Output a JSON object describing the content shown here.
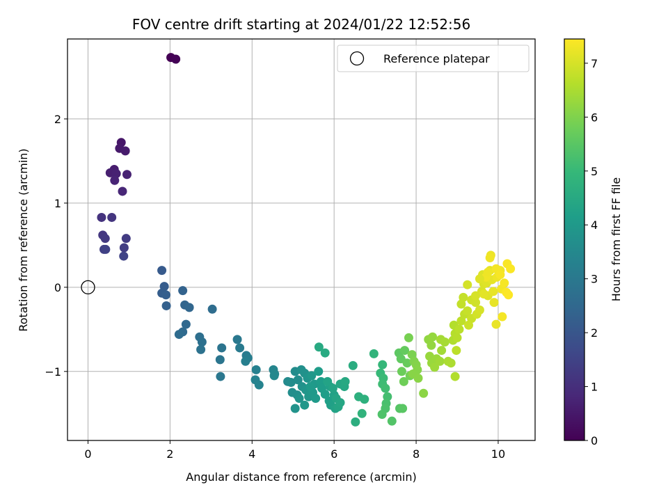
{
  "chart_data": {
    "type": "scatter",
    "title": "FOV centre drift starting at 2024/01/22 12:52:56",
    "xlabel": "Angular distance from reference (arcmin)",
    "ylabel": "Rotation from reference (arcmin)",
    "xlim": [
      -0.5,
      10.9
    ],
    "ylim": [
      -1.82,
      2.95
    ],
    "xticks": [
      0,
      2,
      4,
      6,
      8,
      10
    ],
    "yticks": [
      -1,
      0,
      1,
      2
    ],
    "grid": true,
    "legend": {
      "position": "top-right",
      "label": "Reference platepar"
    },
    "reference_point": {
      "x": 0,
      "y": 0
    },
    "colorbar": {
      "label": "Hours from first FF file",
      "min": 0,
      "max": 7.45,
      "ticks": [
        0,
        1,
        2,
        3,
        4,
        5,
        6,
        7
      ],
      "colormap": "viridis"
    },
    "points": [
      [
        2.02,
        2.73,
        0.0
      ],
      [
        2.14,
        2.71,
        0.05
      ],
      [
        0.81,
        1.72,
        0.45
      ],
      [
        0.77,
        1.65,
        0.5
      ],
      [
        0.91,
        1.62,
        0.55
      ],
      [
        0.64,
        1.4,
        0.6
      ],
      [
        0.54,
        1.36,
        0.65
      ],
      [
        0.69,
        1.35,
        0.7
      ],
      [
        0.95,
        1.34,
        0.72
      ],
      [
        0.65,
        1.27,
        0.75
      ],
      [
        0.84,
        1.14,
        0.8
      ],
      [
        0.33,
        0.83,
        1.1
      ],
      [
        0.58,
        0.83,
        1.15
      ],
      [
        0.36,
        0.62,
        1.2
      ],
      [
        0.42,
        0.58,
        1.25
      ],
      [
        0.93,
        0.58,
        1.3
      ],
      [
        0.88,
        0.47,
        1.35
      ],
      [
        0.39,
        0.45,
        1.4
      ],
      [
        0.43,
        0.45,
        1.45
      ],
      [
        0.87,
        0.37,
        1.5
      ],
      [
        1.8,
        0.2,
        2.1
      ],
      [
        1.86,
        0.01,
        2.15
      ],
      [
        1.8,
        -0.07,
        2.2
      ],
      [
        1.9,
        -0.09,
        2.25
      ],
      [
        1.91,
        -0.22,
        2.3
      ],
      [
        2.31,
        -0.04,
        2.35
      ],
      [
        2.36,
        -0.21,
        2.4
      ],
      [
        2.47,
        -0.24,
        2.45
      ],
      [
        2.39,
        -0.44,
        2.5
      ],
      [
        2.31,
        -0.53,
        2.55
      ],
      [
        2.22,
        -0.56,
        2.6
      ],
      [
        3.03,
        -0.26,
        2.65
      ],
      [
        2.72,
        -0.59,
        2.7
      ],
      [
        2.78,
        -0.65,
        2.75
      ],
      [
        2.75,
        -0.74,
        2.8
      ],
      [
        3.26,
        -0.72,
        2.85
      ],
      [
        3.22,
        -0.86,
        2.9
      ],
      [
        3.23,
        -1.06,
        2.95
      ],
      [
        3.64,
        -0.62,
        3.0
      ],
      [
        3.7,
        -0.72,
        3.05
      ],
      [
        3.86,
        -0.81,
        3.1
      ],
      [
        3.9,
        -0.84,
        3.15
      ],
      [
        3.84,
        -0.88,
        3.2
      ],
      [
        4.1,
        -0.98,
        3.25
      ],
      [
        4.08,
        -1.1,
        3.3
      ],
      [
        4.17,
        -1.16,
        3.35
      ],
      [
        4.52,
        -0.98,
        3.4
      ],
      [
        4.55,
        -1.03,
        3.45
      ],
      [
        4.54,
        -1.05,
        3.5
      ],
      [
        4.87,
        -1.12,
        3.55
      ],
      [
        4.95,
        -1.13,
        3.6
      ],
      [
        5.05,
        -1.0,
        3.62
      ],
      [
        5.12,
        -1.1,
        3.65
      ],
      [
        4.98,
        -1.25,
        3.68
      ],
      [
        5.1,
        -1.28,
        3.7
      ],
      [
        5.2,
        -0.98,
        3.72
      ],
      [
        5.28,
        -1.02,
        3.75
      ],
      [
        5.22,
        -1.18,
        3.78
      ],
      [
        5.15,
        -1.32,
        3.8
      ],
      [
        5.05,
        -1.44,
        3.82
      ],
      [
        5.35,
        -1.08,
        3.85
      ],
      [
        5.31,
        -1.22,
        3.88
      ],
      [
        5.38,
        -1.3,
        3.9
      ],
      [
        5.28,
        -1.4,
        3.92
      ],
      [
        5.45,
        -1.05,
        3.95
      ],
      [
        5.52,
        -1.15,
        3.98
      ],
      [
        5.48,
        -1.25,
        4.0
      ],
      [
        5.55,
        -1.32,
        4.02
      ],
      [
        5.42,
        -1.18,
        4.05
      ],
      [
        5.62,
        -1.0,
        4.08
      ],
      [
        5.68,
        -1.12,
        4.1
      ],
      [
        5.7,
        -1.2,
        4.12
      ],
      [
        5.78,
        -1.27,
        4.15
      ],
      [
        5.88,
        -1.35,
        4.18
      ],
      [
        5.9,
        -1.18,
        4.2
      ],
      [
        5.92,
        -1.4,
        4.22
      ],
      [
        6.0,
        -1.28,
        4.25
      ],
      [
        6.03,
        -1.44,
        4.28
      ],
      [
        5.84,
        -1.12,
        4.3
      ],
      [
        5.97,
        -1.2,
        4.32
      ],
      [
        6.05,
        -1.32,
        4.35
      ],
      [
        6.1,
        -1.42,
        4.38
      ],
      [
        6.15,
        -1.37,
        4.4
      ],
      [
        6.15,
        -1.15,
        4.42
      ],
      [
        6.25,
        -1.18,
        4.45
      ],
      [
        6.27,
        -1.12,
        4.48
      ],
      [
        5.63,
        -0.71,
        4.5
      ],
      [
        5.78,
        -0.78,
        4.52
      ],
      [
        6.46,
        -0.93,
        4.6
      ],
      [
        6.52,
        -1.6,
        4.65
      ],
      [
        6.6,
        -1.3,
        4.7
      ],
      [
        6.74,
        -1.33,
        4.75
      ],
      [
        6.68,
        -1.5,
        4.8
      ],
      [
        6.97,
        -0.79,
        4.85
      ],
      [
        7.18,
        -0.92,
        4.95
      ],
      [
        7.13,
        -1.02,
        5.0
      ],
      [
        7.2,
        -1.08,
        5.05
      ],
      [
        7.18,
        -1.15,
        5.1
      ],
      [
        7.25,
        -1.2,
        5.15
      ],
      [
        7.3,
        -1.3,
        5.2
      ],
      [
        7.27,
        -1.38,
        5.25
      ],
      [
        7.25,
        -1.44,
        5.3
      ],
      [
        7.17,
        -1.51,
        5.35
      ],
      [
        7.41,
        -1.59,
        5.4
      ],
      [
        7.6,
        -1.44,
        5.45
      ],
      [
        7.67,
        -1.44,
        5.5
      ],
      [
        7.58,
        -0.78,
        5.55
      ],
      [
        7.63,
        -0.85,
        5.6
      ],
      [
        7.72,
        -0.75,
        5.65
      ],
      [
        7.78,
        -0.9,
        5.7
      ],
      [
        7.65,
        -1.0,
        5.75
      ],
      [
        7.7,
        -1.12,
        5.8
      ],
      [
        7.85,
        -1.05,
        5.85
      ],
      [
        7.82,
        -0.6,
        5.9
      ],
      [
        7.9,
        -0.8,
        5.95
      ],
      [
        7.95,
        -0.88,
        6.0
      ],
      [
        8.0,
        -0.92,
        6.05
      ],
      [
        8.03,
        -0.98,
        6.08
      ],
      [
        7.92,
        -1.03,
        6.1
      ],
      [
        8.05,
        -1.08,
        6.12
      ],
      [
        8.18,
        -1.26,
        6.15
      ],
      [
        8.3,
        -0.62,
        6.2
      ],
      [
        8.37,
        -0.69,
        6.22
      ],
      [
        8.4,
        -0.59,
        6.25
      ],
      [
        8.33,
        -0.82,
        6.28
      ],
      [
        8.38,
        -0.9,
        6.3
      ],
      [
        8.5,
        -0.85,
        6.32
      ],
      [
        8.45,
        -0.95,
        6.35
      ],
      [
        8.58,
        -0.88,
        6.38
      ],
      [
        8.62,
        -0.75,
        6.4
      ],
      [
        8.6,
        -0.62,
        6.42
      ],
      [
        8.7,
        -0.65,
        6.45
      ],
      [
        8.78,
        -0.88,
        6.5
      ],
      [
        8.85,
        -0.9,
        6.52
      ],
      [
        8.9,
        -0.63,
        6.55
      ],
      [
        8.95,
        -1.06,
        6.58
      ],
      [
        8.92,
        -0.45,
        6.6
      ],
      [
        8.95,
        -0.55,
        6.62
      ],
      [
        9.0,
        -0.6,
        6.65
      ],
      [
        9.05,
        -0.5,
        6.68
      ],
      [
        8.98,
        -0.75,
        6.7
      ],
      [
        9.1,
        -0.4,
        6.72
      ],
      [
        9.18,
        -0.32,
        6.75
      ],
      [
        9.1,
        -0.2,
        6.78
      ],
      [
        9.15,
        -0.12,
        6.8
      ],
      [
        9.25,
        -0.28,
        6.82
      ],
      [
        9.35,
        -0.37,
        6.85
      ],
      [
        9.28,
        -0.45,
        6.88
      ],
      [
        9.35,
        -0.15,
        6.9
      ],
      [
        9.45,
        -0.18,
        6.92
      ],
      [
        9.48,
        -0.32,
        6.95
      ],
      [
        9.25,
        0.03,
        6.98
      ],
      [
        9.55,
        -0.27,
        7.0
      ],
      [
        9.6,
        -0.05,
        7.02
      ],
      [
        9.65,
        0.04,
        7.05
      ],
      [
        9.62,
        0.15,
        7.08
      ],
      [
        9.72,
        0.05,
        7.1
      ],
      [
        9.75,
        -0.1,
        7.12
      ],
      [
        9.8,
        0.2,
        7.15
      ],
      [
        9.85,
        0.09,
        7.18
      ],
      [
        9.9,
        -0.18,
        7.2
      ],
      [
        9.95,
        -0.44,
        7.22
      ],
      [
        9.82,
        0.38,
        7.25
      ],
      [
        9.97,
        0.12,
        7.28
      ],
      [
        10.05,
        0.2,
        7.3
      ],
      [
        10.08,
        -0.02,
        7.32
      ],
      [
        10.1,
        -0.35,
        7.35
      ],
      [
        10.15,
        0.05,
        7.37
      ],
      [
        10.22,
        0.28,
        7.4
      ],
      [
        10.3,
        0.22,
        7.42
      ],
      [
        10.2,
        -0.06,
        7.43
      ],
      [
        10.25,
        -0.09,
        7.44
      ],
      [
        9.7,
        0.12,
        7.3
      ],
      [
        9.75,
        0.18,
        7.28
      ],
      [
        9.95,
        0.22,
        7.35
      ],
      [
        10.05,
        0.15,
        7.38
      ],
      [
        9.88,
        -0.05,
        7.2
      ],
      [
        9.65,
        -0.08,
        7.15
      ],
      [
        9.55,
        0.1,
        7.1
      ],
      [
        9.45,
        -0.1,
        7.0
      ],
      [
        9.8,
        0.35,
        7.3
      ]
    ]
  }
}
